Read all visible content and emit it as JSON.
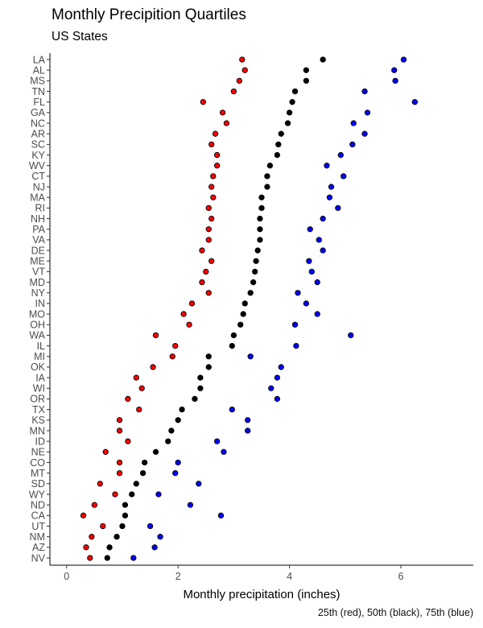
{
  "chart_data": {
    "type": "scatter",
    "title": "Monthly Precipition Quartiles",
    "subtitle": "US States",
    "xlabel": "Monthly precipitation (inches)",
    "ylabel": "",
    "caption": "25th (red), 50th (black), 75th (blue)",
    "xlim": [
      -0.3,
      7.3
    ],
    "xticks": [
      0,
      2,
      4,
      6
    ],
    "grid": false,
    "categories": [
      "LA",
      "AL",
      "MS",
      "TN",
      "FL",
      "GA",
      "NC",
      "AR",
      "SC",
      "KY",
      "WV",
      "CT",
      "NJ",
      "MA",
      "RI",
      "NH",
      "PA",
      "VA",
      "DE",
      "ME",
      "VT",
      "MD",
      "NY",
      "IN",
      "MO",
      "OH",
      "WA",
      "IL",
      "MI",
      "OK",
      "IA",
      "WI",
      "OR",
      "TX",
      "KS",
      "MN",
      "ID",
      "NE",
      "CO",
      "MT",
      "SD",
      "WY",
      "ND",
      "CA",
      "UT",
      "NM",
      "AZ",
      "NV"
    ],
    "series": [
      {
        "color": "#ff0000",
        "values": [
          3.15,
          3.2,
          3.1,
          3.0,
          2.45,
          2.8,
          2.87,
          2.67,
          2.6,
          2.7,
          2.7,
          2.63,
          2.6,
          2.63,
          2.55,
          2.6,
          2.55,
          2.55,
          2.43,
          2.6,
          2.5,
          2.43,
          2.55,
          2.25,
          2.1,
          2.2,
          1.6,
          1.95,
          1.9,
          1.55,
          1.25,
          1.35,
          1.1,
          1.3,
          0.95,
          0.95,
          1.1,
          0.7,
          0.95,
          0.95,
          0.6,
          0.87,
          0.5,
          0.3,
          0.65,
          0.45,
          0.35,
          0.42
        ]
      },
      {
        "color": "#000000",
        "values": [
          4.6,
          4.3,
          4.3,
          4.1,
          4.05,
          4.0,
          3.97,
          3.85,
          3.8,
          3.78,
          3.65,
          3.6,
          3.6,
          3.5,
          3.5,
          3.47,
          3.47,
          3.47,
          3.43,
          3.4,
          3.38,
          3.35,
          3.3,
          3.2,
          3.17,
          3.12,
          3.0,
          2.97,
          2.55,
          2.55,
          2.4,
          2.4,
          2.3,
          2.07,
          2.0,
          1.88,
          1.82,
          1.6,
          1.4,
          1.37,
          1.25,
          1.17,
          1.05,
          1.05,
          1.0,
          0.9,
          0.77,
          0.73
        ]
      },
      {
        "color": "#0000ff",
        "values": [
          6.05,
          5.88,
          5.9,
          5.35,
          6.25,
          5.4,
          5.15,
          5.35,
          5.13,
          4.92,
          4.67,
          4.97,
          4.75,
          4.72,
          4.87,
          4.6,
          4.37,
          4.53,
          4.6,
          4.35,
          4.4,
          4.5,
          4.15,
          4.3,
          4.5,
          4.1,
          5.1,
          4.12,
          3.3,
          3.85,
          3.78,
          3.67,
          3.78,
          2.97,
          3.25,
          3.25,
          2.7,
          2.82,
          2.0,
          1.95,
          2.37,
          1.65,
          2.22,
          2.77,
          1.5,
          1.68,
          1.58,
          1.2
        ]
      }
    ]
  }
}
